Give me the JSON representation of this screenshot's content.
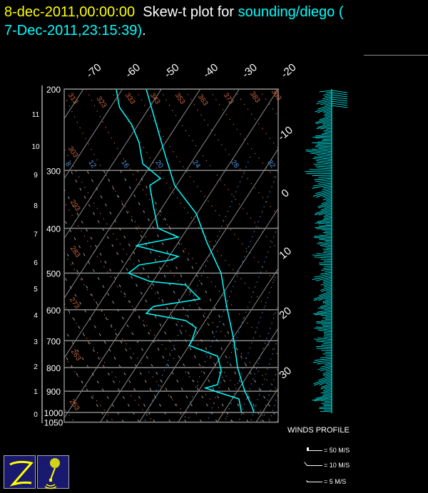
{
  "header": {
    "date": "8-dec-2011,00:00:00",
    "plot_for": "Skew-t plot for",
    "station": "sounding/diego (",
    "obs_time": "7-Dec-2011,23:15:39)",
    "end": "."
  },
  "colors": {
    "date": "#ffff00",
    "station": "#00ffff",
    "profiles": "#00ffff",
    "dry_adiabats": "#c8643c",
    "mixing_ratio": "#4a8fd6",
    "isotherms": "#888888",
    "logo_bg": "#191970",
    "logo_fg": "#ffff00"
  },
  "chart_data": {
    "type": "line",
    "subtype": "skew-t log-p",
    "pressure_ticks": [
      "200",
      "300",
      "400",
      "500",
      "600",
      "700",
      "800",
      "900",
      "1000",
      "1050"
    ],
    "pressure_values": [
      200,
      300,
      400,
      500,
      600,
      700,
      800,
      900,
      1000,
      1050
    ],
    "height_ticks_km": [
      "0",
      "1",
      "2",
      "3",
      "4",
      "5",
      "6",
      "7",
      "8",
      "9",
      "10",
      "11"
    ],
    "isotherm_labels_top": [
      "-70",
      "-60",
      "-50",
      "-40",
      "-30",
      "-20"
    ],
    "isotherm_labels_right": [
      "-10",
      "0",
      "10",
      "20",
      "30"
    ],
    "dry_adiabat_labels": [
      "313",
      "323",
      "333",
      "343",
      "353",
      "363",
      "373",
      "383",
      "393",
      "303",
      "293",
      "283",
      "273",
      "263",
      "253"
    ],
    "mixing_ratio_labels": [
      "8",
      "12",
      "16",
      "20",
      "24",
      "28",
      "32"
    ],
    "ylim_hpa": [
      1050,
      200
    ],
    "series": [
      {
        "role": "temperature",
        "color": "#00ffff",
        "pressure": [
          200,
          235,
          280,
          323,
          372,
          429,
          500,
          590,
          700,
          800,
          900,
          969,
          1000
        ],
        "temperature": [
          -53.9,
          -46.1,
          -37.6,
          -30.5,
          -20.2,
          -12.7,
          -3.9,
          3.1,
          10.7,
          16.1,
          21.9,
          26.2,
          27.8
        ]
      },
      {
        "role": "dewpoint",
        "color": "#00ffff",
        "pressure": [
          200,
          219,
          239,
          261,
          290,
          312,
          323,
          359,
          400,
          418,
          436,
          460,
          468,
          480,
          500,
          521,
          530,
          569,
          590,
          611,
          633,
          656,
          692,
          717,
          756,
          812,
          871,
          886,
          909,
          935,
          1000
        ],
        "temperature": [
          -61.6,
          -57.7,
          -51.6,
          -46.8,
          -42.3,
          -35.3,
          -36.9,
          -32.4,
          -27.6,
          -20.9,
          -30.4,
          -17.7,
          -18.9,
          -26.3,
          -27.7,
          -20.8,
          -11.1,
          -5.0,
          -15.7,
          -16.4,
          -5.1,
          -1.2,
          -0.3,
          0.0,
          9.1,
          12.4,
          13.8,
          11.3,
          16.2,
          21.7,
          24.6
        ]
      }
    ]
  },
  "winds": {
    "title": "WINDS PROFILE",
    "legend": [
      "= 50 M/S",
      "= 10 M/S",
      "= 5 M/S"
    ]
  }
}
